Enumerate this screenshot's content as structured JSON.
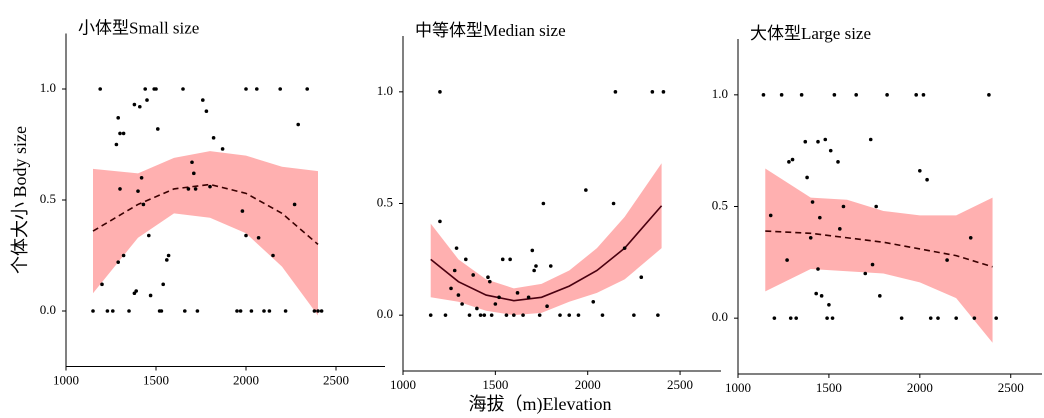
{
  "shared": {
    "ylabel": "个体大小 Body size",
    "xlabel": "海拔（m)Elevation"
  },
  "chart_data": [
    {
      "type": "scatter",
      "title": "小体型Small size",
      "color": "#000000",
      "xlim": [
        1000,
        2750
      ],
      "ylim": [
        -0.25,
        1.25
      ],
      "xticks": [
        1000,
        1500,
        2000,
        2500
      ],
      "yticks": [
        {
          "value": 0,
          "label": "0.0"
        },
        {
          "value": 0.5,
          "label": "0.5"
        },
        {
          "value": 1,
          "label": "1.0"
        }
      ],
      "x": [
        1150,
        1190,
        1200,
        1230,
        1260,
        1290,
        1280,
        1300,
        1320,
        1300,
        1290,
        1320,
        1350,
        1380,
        1390,
        1380,
        1400,
        1410,
        1420,
        1430,
        1440,
        1450,
        1460,
        1470,
        1490,
        1500,
        1510,
        1520,
        1530,
        1540,
        1560,
        1570,
        1650,
        1660,
        1680,
        1700,
        1710,
        1720,
        1730,
        1760,
        1780,
        1800,
        1820,
        1870,
        1950,
        1970,
        1980,
        2000,
        2000,
        2030,
        2060,
        2070,
        2100,
        2130,
        2150,
        2190,
        2220,
        2270,
        2290,
        2340,
        2380,
        2400,
        2420
      ],
      "values": [
        0,
        1.0,
        0.12,
        0,
        0,
        0.87,
        0.75,
        0.8,
        0.8,
        0.55,
        0.22,
        0.25,
        0,
        0.08,
        0.09,
        0.93,
        0.54,
        0.92,
        0.6,
        0.48,
        1.0,
        0.95,
        0.34,
        0.07,
        1.0,
        1.0,
        0.82,
        0,
        0,
        0.12,
        0.23,
        0.25,
        1.0,
        0,
        0.55,
        0.67,
        0.62,
        0.55,
        0,
        0.95,
        0.9,
        0.56,
        0.78,
        0.73,
        0,
        0,
        0.45,
        0.34,
        1.0,
        0,
        1.0,
        0.33,
        0,
        0,
        0.25,
        1.0,
        0,
        0.48,
        0.84,
        1.0,
        0,
        0,
        0
      ],
      "fit": {
        "line_style": "dashed",
        "line_color": "#3a0000",
        "band_color": "#ffb0b0",
        "x": [
          1150,
          1400,
          1600,
          1800,
          2000,
          2200,
          2400
        ],
        "values": [
          0.36,
          0.48,
          0.55,
          0.57,
          0.53,
          0.44,
          0.3
        ],
        "upper": [
          0.64,
          0.62,
          0.69,
          0.72,
          0.7,
          0.65,
          0.63
        ],
        "lower": [
          0.08,
          0.33,
          0.44,
          0.42,
          0.35,
          0.2,
          -0.02
        ]
      }
    },
    {
      "type": "scatter",
      "title": "中等体型Median size",
      "color": "#000000",
      "xlim": [
        1000,
        2700
      ],
      "ylim": [
        -0.25,
        1.25
      ],
      "xticks": [
        1000,
        1500,
        2000,
        2500
      ],
      "yticks": [
        {
          "value": 0,
          "label": "0.0"
        },
        {
          "value": 0.5,
          "label": "0.5"
        },
        {
          "value": 1,
          "label": "1.0"
        }
      ],
      "x": [
        1150,
        1200,
        1200,
        1230,
        1260,
        1280,
        1290,
        1300,
        1320,
        1340,
        1360,
        1380,
        1400,
        1420,
        1440,
        1460,
        1470,
        1480,
        1500,
        1520,
        1540,
        1560,
        1580,
        1600,
        1620,
        1650,
        1680,
        1700,
        1710,
        1720,
        1740,
        1760,
        1780,
        1800,
        1850,
        1900,
        1950,
        1990,
        2030,
        2080,
        2140,
        2150,
        2200,
        2250,
        2290,
        2350,
        2380,
        2410
      ],
      "values": [
        0,
        1.0,
        0.42,
        0,
        0.12,
        0.2,
        0.3,
        0.09,
        0.05,
        0.25,
        0,
        0.18,
        0.03,
        0,
        0,
        0.17,
        0.15,
        0,
        0.05,
        0.08,
        0.25,
        0,
        0.25,
        0,
        0.1,
        0,
        0.08,
        0.29,
        0.2,
        0.22,
        0,
        0.5,
        0.04,
        0.22,
        0,
        0,
        0,
        0.56,
        0.06,
        0,
        0.5,
        1.0,
        0.3,
        0,
        0.17,
        1.0,
        0,
        1.0
      ],
      "fit": {
        "line_style": "solid",
        "line_color": "#4a0010",
        "band_color": "#ffb0b0",
        "x": [
          1150,
          1300,
          1450,
          1600,
          1750,
          1900,
          2050,
          2200,
          2400
        ],
        "values": [
          0.25,
          0.15,
          0.09,
          0.065,
          0.08,
          0.13,
          0.2,
          0.3,
          0.49
        ],
        "upper": [
          0.41,
          0.25,
          0.16,
          0.12,
          0.14,
          0.2,
          0.3,
          0.44,
          0.68
        ],
        "lower": [
          0.08,
          0.06,
          0.02,
          0.0,
          0.01,
          0.06,
          0.1,
          0.16,
          0.3
        ]
      }
    },
    {
      "type": "scatter",
      "title": "大体型Large size",
      "color": "#000000",
      "xlim": [
        1000,
        2650
      ],
      "ylim": [
        -0.25,
        1.25
      ],
      "xticks": [
        1000,
        1500,
        2000,
        2500
      ],
      "yticks": [
        {
          "value": 0,
          "label": "0.0"
        },
        {
          "value": 0.5,
          "label": "0.5"
        },
        {
          "value": 1,
          "label": "1.0"
        }
      ],
      "x": [
        1140,
        1180,
        1200,
        1240,
        1270,
        1280,
        1290,
        1300,
        1320,
        1350,
        1370,
        1380,
        1400,
        1410,
        1430,
        1440,
        1440,
        1450,
        1460,
        1480,
        1490,
        1500,
        1510,
        1520,
        1530,
        1550,
        1560,
        1580,
        1650,
        1700,
        1730,
        1740,
        1760,
        1780,
        1820,
        1900,
        1980,
        2000,
        2020,
        2040,
        2060,
        2100,
        2150,
        2200,
        2280,
        2300,
        2380,
        2420
      ],
      "values": [
        1.0,
        0.46,
        0,
        1.0,
        0.26,
        0.7,
        0,
        0.71,
        0,
        1.0,
        0.79,
        0.63,
        0.36,
        0.52,
        0.11,
        0.79,
        0.22,
        0.45,
        0.1,
        0.8,
        0,
        0.06,
        0.75,
        0,
        1.0,
        0.7,
        0.4,
        0.5,
        1.0,
        0.2,
        0.8,
        0.24,
        0.5,
        0.1,
        1.0,
        0,
        1.0,
        0.66,
        1.0,
        0.62,
        0,
        0,
        0.26,
        0,
        0.36,
        0,
        1.0,
        0
      ],
      "fit": {
        "line_style": "dashed",
        "line_color": "#3a0000",
        "band_color": "#ffb0b0",
        "x": [
          1150,
          1400,
          1600,
          1800,
          2000,
          2200,
          2400
        ],
        "values": [
          0.39,
          0.38,
          0.36,
          0.34,
          0.31,
          0.28,
          0.23
        ],
        "upper": [
          0.67,
          0.54,
          0.53,
          0.48,
          0.46,
          0.46,
          0.54
        ],
        "lower": [
          0.12,
          0.22,
          0.21,
          0.2,
          0.16,
          0.09,
          -0.11
        ]
      }
    }
  ]
}
